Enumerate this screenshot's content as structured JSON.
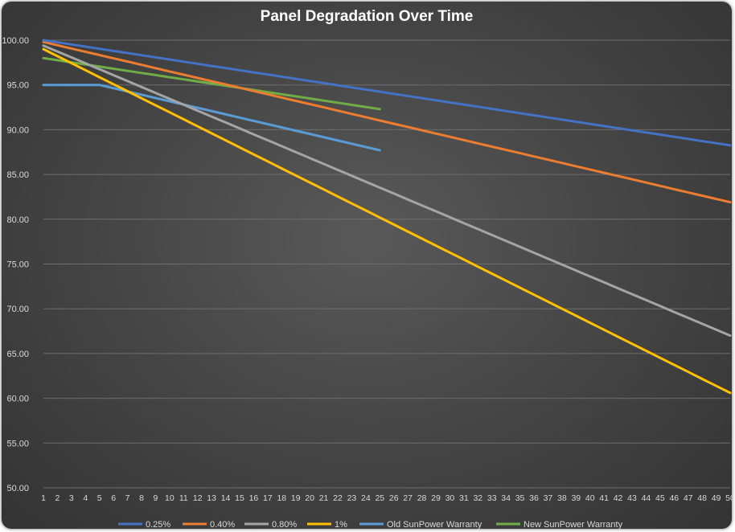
{
  "chart_data": {
    "type": "line",
    "title": "Panel Degradation Over Time",
    "xlabel": "",
    "ylabel": "",
    "x": [
      1,
      2,
      3,
      4,
      5,
      6,
      7,
      8,
      9,
      10,
      11,
      12,
      13,
      14,
      15,
      16,
      17,
      18,
      19,
      20,
      21,
      22,
      23,
      24,
      25,
      26,
      27,
      28,
      29,
      30,
      31,
      32,
      33,
      34,
      35,
      36,
      37,
      38,
      39,
      40,
      41,
      42,
      43,
      44,
      45,
      46,
      47,
      48,
      49,
      50
    ],
    "ylim": [
      50,
      100
    ],
    "yticks": [
      "50.00",
      "55.00",
      "60.00",
      "65.00",
      "70.00",
      "75.00",
      "80.00",
      "85.00",
      "90.00",
      "95.00",
      "100.00"
    ],
    "grid": "horizontal",
    "legend_position": "bottom",
    "series": [
      {
        "name": "0.25%",
        "color": "#4472c4",
        "x_start": 1,
        "x_end": 50,
        "y_start": 100.0,
        "y_end": 88.25
      },
      {
        "name": "0.40%",
        "color": "#ed7d31",
        "x_start": 1,
        "x_end": 50,
        "y_start": 99.8,
        "y_end": 81.9
      },
      {
        "name": "0.80%",
        "color": "#a5a5a5",
        "x_start": 1,
        "x_end": 50,
        "y_start": 99.4,
        "y_end": 67.0
      },
      {
        "name": "1%",
        "color": "#ffc000",
        "x_start": 1,
        "x_end": 50,
        "y_start": 99.0,
        "y_end": 60.6
      },
      {
        "name": "Old SunPower Warranty",
        "color": "#5b9bd5",
        "points": [
          [
            1,
            95.0
          ],
          [
            5,
            95.0
          ],
          [
            25,
            87.7
          ]
        ]
      },
      {
        "name": "New SunPower Warranty",
        "color": "#70ad47",
        "x_start": 1,
        "x_end": 25,
        "y_start": 98.0,
        "y_end": 92.3
      }
    ]
  }
}
